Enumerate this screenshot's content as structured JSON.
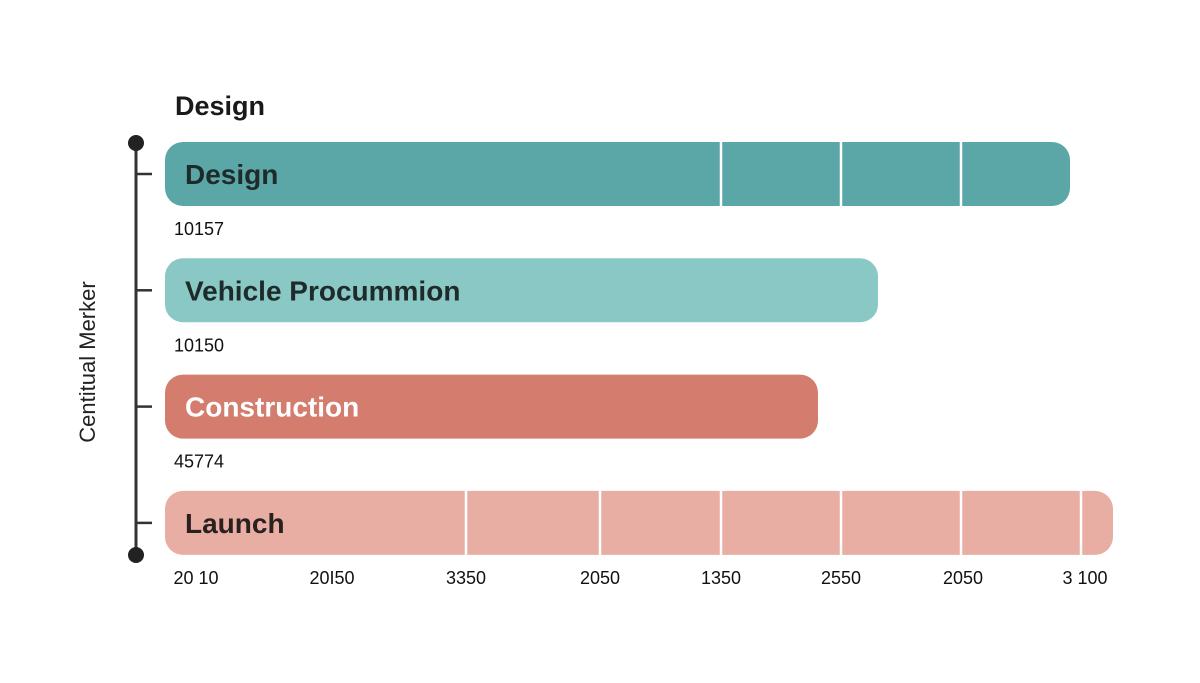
{
  "chart_data": {
    "type": "bar",
    "orientation": "horizontal",
    "title": "Design",
    "ylabel": "Centitual Merker",
    "xlabel": "",
    "x_tick_labels": [
      "20 10",
      "20I50",
      "3350",
      "2050",
      "1350",
      "2550",
      "2050",
      "3 100"
    ],
    "bars": [
      {
        "label": "Design",
        "value_label": "10157",
        "length_fraction": 0.905,
        "color": "#5ba6a6",
        "text_color": "#1f2a2a",
        "dividers": [
          4,
          5,
          6,
          7
        ]
      },
      {
        "label": "Vehicle Procummion",
        "value_label": "10150",
        "length_fraction": 0.713,
        "color": "#8ac8c6",
        "text_color": "#1f2a2a",
        "dividers": []
      },
      {
        "label": "Construction",
        "value_label": "45774",
        "length_fraction": 0.653,
        "color": "#d47d6e",
        "text_color": "#ffffff",
        "dividers": []
      },
      {
        "label": "Launch",
        "value_label": "",
        "length_fraction": 0.948,
        "color": "#e8aea3",
        "text_color": "#2a2020",
        "dividers": [
          2,
          3,
          4,
          5,
          6,
          7,
          8
        ]
      }
    ],
    "grid": false,
    "legend": "none"
  }
}
